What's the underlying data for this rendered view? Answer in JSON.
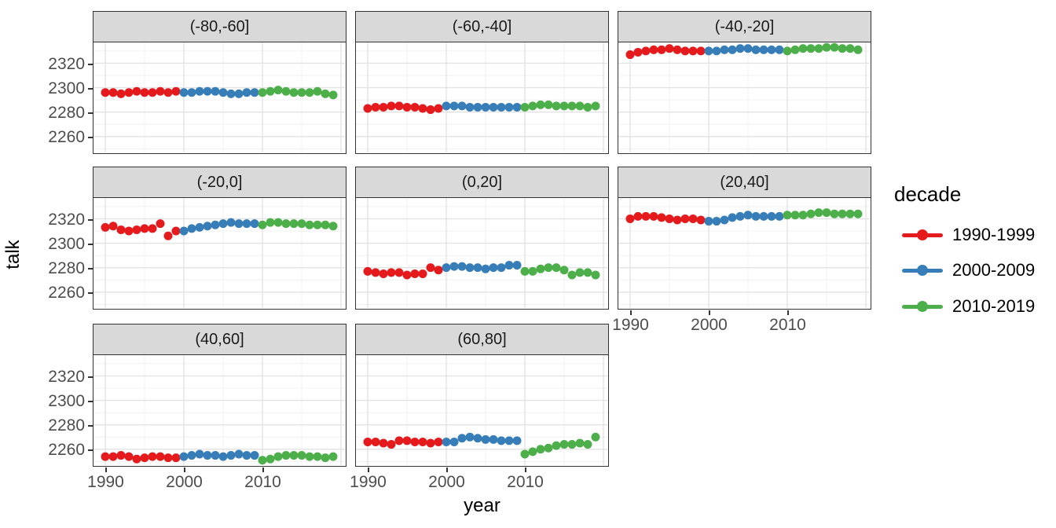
{
  "chart_data": {
    "type": "scatter",
    "title": "",
    "xlabel": "year",
    "ylabel": "talk",
    "x_domain": [
      1988.5,
      2020.5
    ],
    "y_domain": [
      2247,
      2337
    ],
    "x_ticks": [
      1990,
      2000,
      2010
    ],
    "y_ticks": [
      2320,
      2300,
      2280,
      2260
    ],
    "x_major_gridlines": [
      1990,
      2000,
      2010,
      2020
    ],
    "x_minor_gridlines": [
      1995,
      2005,
      2015
    ],
    "y_major_gridlines": [
      2260,
      2280,
      2300,
      2320
    ],
    "y_minor_gridlines": [
      2250,
      2270,
      2290,
      2310,
      2330
    ],
    "grid": true,
    "legend": {
      "title": "decade",
      "position": "right",
      "items": [
        {
          "label": "1990-1999",
          "color": "#E41A1C"
        },
        {
          "label": "2000-2009",
          "color": "#377EB8"
        },
        {
          "label": "2010-2019",
          "color": "#4DAF4A"
        }
      ]
    },
    "facets": [
      {
        "label": "(-80,-60]",
        "series": [
          {
            "name": "1990-1999",
            "color": "#E41A1C",
            "x_start": 1990,
            "values": [
              2296,
              2296,
              2295,
              2296,
              2297,
              2296,
              2296,
              2297,
              2296,
              2297
            ]
          },
          {
            "name": "2000-2009",
            "color": "#377EB8",
            "x_start": 2000,
            "values": [
              2296,
              2296,
              2297,
              2297,
              2297,
              2296,
              2295,
              2295,
              2296,
              2296
            ]
          },
          {
            "name": "2010-2019",
            "color": "#4DAF4A",
            "x_start": 2010,
            "values": [
              2296,
              2297,
              2298,
              2297,
              2296,
              2296,
              2296,
              2297,
              2295,
              2294
            ]
          }
        ]
      },
      {
        "label": "(-60,-40]",
        "series": [
          {
            "name": "1990-1999",
            "color": "#E41A1C",
            "x_start": 1990,
            "values": [
              2283,
              2284,
              2284,
              2285,
              2285,
              2284,
              2284,
              2283,
              2282,
              2283
            ]
          },
          {
            "name": "2000-2009",
            "color": "#377EB8",
            "x_start": 2000,
            "values": [
              2285,
              2285,
              2285,
              2284,
              2284,
              2284,
              2284,
              2284,
              2284,
              2284
            ]
          },
          {
            "name": "2010-2019",
            "color": "#4DAF4A",
            "x_start": 2010,
            "values": [
              2284,
              2285,
              2286,
              2286,
              2285,
              2285,
              2285,
              2285,
              2284,
              2285
            ]
          }
        ]
      },
      {
        "label": "(-40,-20]",
        "series": [
          {
            "name": "1990-1999",
            "color": "#E41A1C",
            "x_start": 1990,
            "values": [
              2327,
              2329,
              2330,
              2331,
              2331,
              2332,
              2331,
              2330,
              2330,
              2330
            ]
          },
          {
            "name": "2000-2009",
            "color": "#377EB8",
            "x_start": 2000,
            "values": [
              2330,
              2330,
              2331,
              2331,
              2332,
              2332,
              2331,
              2331,
              2331,
              2331
            ]
          },
          {
            "name": "2010-2019",
            "color": "#4DAF4A",
            "x_start": 2010,
            "values": [
              2330,
              2331,
              2332,
              2332,
              2332,
              2333,
              2333,
              2332,
              2332,
              2331
            ]
          }
        ]
      },
      {
        "label": "(-20,0]",
        "series": [
          {
            "name": "1990-1999",
            "color": "#E41A1C",
            "x_start": 1990,
            "values": [
              2313,
              2314,
              2311,
              2310,
              2311,
              2312,
              2312,
              2316,
              2306,
              2310
            ]
          },
          {
            "name": "2000-2009",
            "color": "#377EB8",
            "x_start": 2000,
            "values": [
              2310,
              2312,
              2313,
              2314,
              2315,
              2316,
              2317,
              2316,
              2316,
              2316
            ]
          },
          {
            "name": "2010-2019",
            "color": "#4DAF4A",
            "x_start": 2010,
            "values": [
              2315,
              2317,
              2317,
              2316,
              2316,
              2316,
              2315,
              2315,
              2315,
              2314
            ]
          }
        ]
      },
      {
        "label": "(0,20]",
        "series": [
          {
            "name": "1990-1999",
            "color": "#E41A1C",
            "x_start": 1990,
            "values": [
              2277,
              2276,
              2275,
              2276,
              2276,
              2274,
              2275,
              2275,
              2280,
              2278
            ]
          },
          {
            "name": "2000-2009",
            "color": "#377EB8",
            "x_start": 2000,
            "values": [
              2280,
              2281,
              2281,
              2280,
              2280,
              2279,
              2280,
              2280,
              2282,
              2282
            ]
          },
          {
            "name": "2010-2019",
            "color": "#4DAF4A",
            "x_start": 2010,
            "values": [
              2277,
              2277,
              2279,
              2280,
              2280,
              2278,
              2274,
              2276,
              2276,
              2274
            ]
          }
        ]
      },
      {
        "label": "(20,40]",
        "series": [
          {
            "name": "1990-1999",
            "color": "#E41A1C",
            "x_start": 1990,
            "values": [
              2320,
              2322,
              2322,
              2322,
              2321,
              2320,
              2319,
              2320,
              2320,
              2319
            ]
          },
          {
            "name": "2000-2009",
            "color": "#377EB8",
            "x_start": 2000,
            "values": [
              2318,
              2318,
              2319,
              2321,
              2322,
              2323,
              2322,
              2322,
              2322,
              2322
            ]
          },
          {
            "name": "2010-2019",
            "color": "#4DAF4A",
            "x_start": 2010,
            "values": [
              2323,
              2323,
              2323,
              2324,
              2325,
              2325,
              2324,
              2324,
              2324,
              2324
            ]
          }
        ]
      },
      {
        "label": "(40,60]",
        "series": [
          {
            "name": "1990-1999",
            "color": "#E41A1C",
            "x_start": 1990,
            "values": [
              2254,
              2254,
              2255,
              2254,
              2252,
              2253,
              2254,
              2254,
              2253,
              2253
            ]
          },
          {
            "name": "2000-2009",
            "color": "#377EB8",
            "x_start": 2000,
            "values": [
              2254,
              2255,
              2256,
              2255,
              2255,
              2254,
              2255,
              2256,
              2255,
              2255
            ]
          },
          {
            "name": "2010-2019",
            "color": "#4DAF4A",
            "x_start": 2010,
            "values": [
              2251,
              2252,
              2254,
              2255,
              2255,
              2255,
              2254,
              2254,
              2253,
              2254
            ]
          }
        ]
      },
      {
        "label": "(60,80]",
        "series": [
          {
            "name": "1990-1999",
            "color": "#E41A1C",
            "x_start": 1990,
            "values": [
              2266,
              2266,
              2265,
              2264,
              2267,
              2267,
              2266,
              2266,
              2265,
              2266
            ]
          },
          {
            "name": "2000-2009",
            "color": "#377EB8",
            "x_start": 2000,
            "values": [
              2266,
              2266,
              2269,
              2270,
              2269,
              2268,
              2268,
              2267,
              2267,
              2267
            ]
          },
          {
            "name": "2010-2019",
            "color": "#4DAF4A",
            "x_start": 2010,
            "values": [
              2256,
              2258,
              2260,
              2261,
              2263,
              2264,
              2264,
              2265,
              2264,
              2270
            ]
          }
        ]
      }
    ],
    "style": {
      "strip_bg": "#d9d9d9",
      "panel_border": "#333333",
      "grid_major": "#e3e3e3",
      "grid_minor": "#f1f1f1",
      "tick_label_color": "#4d4d4d",
      "point_radius": 5.5
    }
  }
}
